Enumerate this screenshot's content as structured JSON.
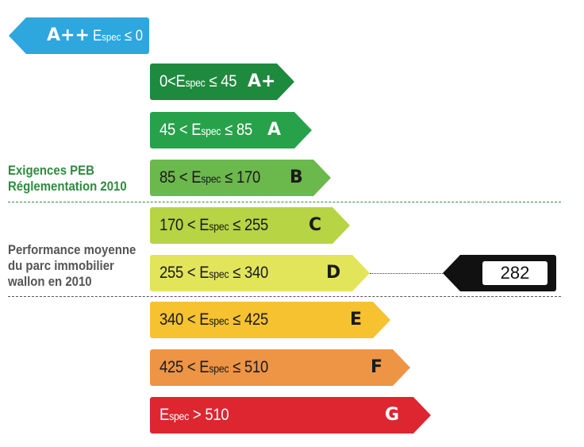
{
  "top_class": {
    "letter": "A++",
    "label": "E",
    "sub": "spec",
    "rel": "≤ 0",
    "color": "#2ea6de"
  },
  "classes": [
    {
      "name": "A+",
      "pre": "0<E",
      "sub": "spec",
      "post": "≤ 45",
      "color": "#1e8a3e",
      "text_color": "#ffffff"
    },
    {
      "name": "A",
      "pre": "45 < E",
      "sub": "spec",
      "post": "≤ 85",
      "color": "#27a14a",
      "text_color": "#ffffff"
    },
    {
      "name": "B",
      "pre": "85 < E",
      "sub": "spec",
      "post": "≤ 170",
      "color": "#6bb84c",
      "text_color": "#1a1a1a"
    },
    {
      "name": "C",
      "pre": "170 < E",
      "sub": "spec",
      "post": "≤ 255",
      "color": "#b6d443",
      "text_color": "#1a1a1a"
    },
    {
      "name": "D",
      "pre": "255 < E",
      "sub": "spec",
      "post": "≤ 340",
      "color": "#e2e55a",
      "text_color": "#1a1a1a"
    },
    {
      "name": "E",
      "pre": "340 < E",
      "sub": "spec",
      "post": "≤ 425",
      "color": "#f6c230",
      "text_color": "#1a1a1a"
    },
    {
      "name": "F",
      "pre": "425 < E",
      "sub": "spec",
      "post": "≤ 510",
      "color": "#ee9445",
      "text_color": "#1a1a1a"
    },
    {
      "name": "G",
      "pre": "E",
      "sub": "spec",
      "post": "> 510",
      "color": "#dd2630",
      "text_color": "#ffffff"
    }
  ],
  "labels": {
    "peb_line1": "Exigences PEB",
    "peb_line2": "Réglementation 2010",
    "perf_line1": "Performance moyenne",
    "perf_line2": "du parc immobilier",
    "perf_line3": "wallon en 2010"
  },
  "indicator": {
    "value": "282"
  },
  "colors": {
    "peb_label": "#2e8b3e",
    "perf_label": "#555555"
  }
}
